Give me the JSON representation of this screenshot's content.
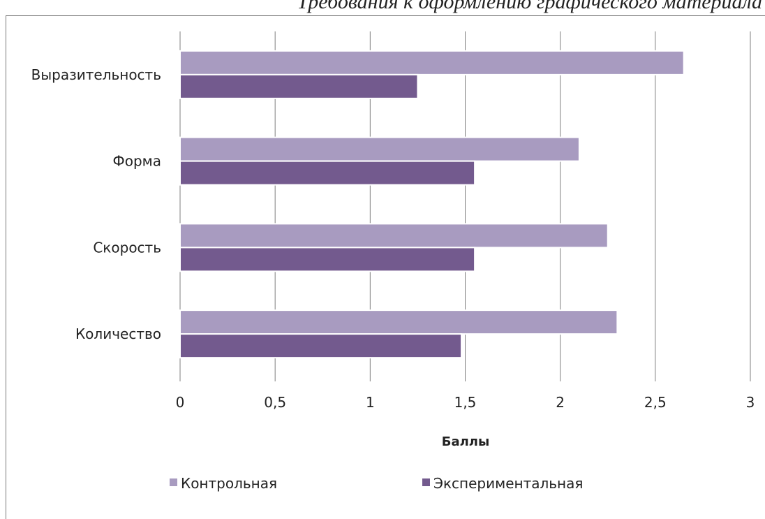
{
  "header_text": "Требования к оформлению графического материала",
  "colors": {
    "control": "#a89bc0",
    "experimental": "#735a8e",
    "grid": "#7f7f7f",
    "bar_edge": "#ffffff"
  },
  "chart_data": {
    "type": "bar",
    "orientation": "horizontal",
    "categories": [
      "Выразительность",
      "Форма",
      "Скорость",
      "Количество"
    ],
    "series": [
      {
        "name": "Контрольная",
        "values": [
          2.65,
          2.1,
          2.25,
          2.3
        ]
      },
      {
        "name": "Экспериментальная",
        "values": [
          1.25,
          1.55,
          1.55,
          1.48
        ]
      }
    ],
    "xlabel": "Баллы",
    "ylabel": "",
    "xlim": [
      0,
      3
    ],
    "xticks": [
      0,
      0.5,
      1,
      1.5,
      2,
      2.5,
      3
    ],
    "xtick_labels": [
      "0",
      "0,5",
      "1",
      "1,5",
      "2",
      "2,5",
      "3"
    ],
    "grid": "vertical",
    "legend": "bottom"
  }
}
